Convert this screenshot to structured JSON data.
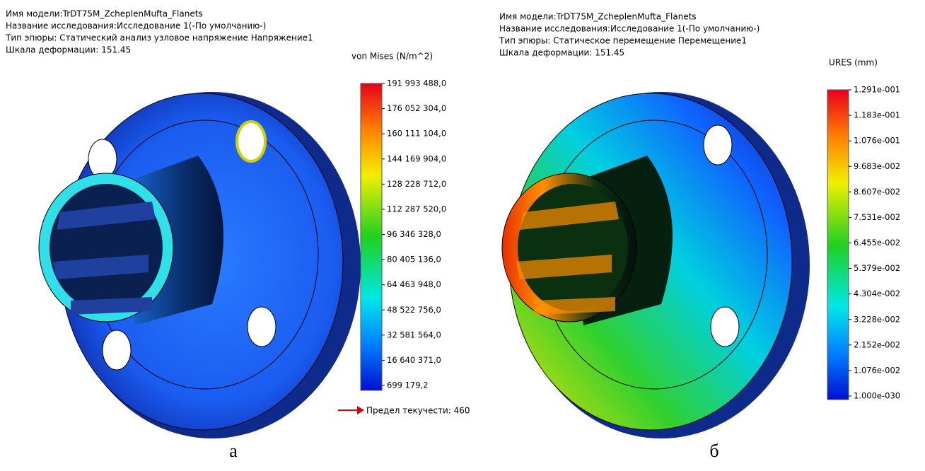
{
  "panels": [
    {
      "header": [
        "Имя модели:TrDT75M_ZcheplenMufta_Flanets",
        "Название исследования:Исследование 1(-По умолчанию-)",
        "Тип эпюры: Статический анализ узловое напряжение Напряжение1",
        "Шкала деформации: 151.45"
      ],
      "legend_title": "von Mises (N/m^2)",
      "legend_labels": [
        "191 993 488,0",
        "176 052 304,0",
        "160 111 104,0",
        "144 169 904,0",
        "128 228 712,0",
        "112 287 520,0",
        "96 346 328,0",
        "80 405 136,0",
        "64 463 948,0",
        "48 522 756,0",
        "32 581 564,0",
        "16 640 371,0",
        "699 179,2"
      ],
      "yield_note": "Предел текучести: 460",
      "caption": "а"
    },
    {
      "header": [
        "Имя модели:TrDT75M_ZcheplenMufta_Flanets",
        "Название исследования:Исследование 1(-По умолчанию-)",
        "Тип эпюры: Статическое перемещение Перемещение1",
        "Шкала деформации: 151.45"
      ],
      "legend_title": "URES (mm)",
      "legend_labels": [
        "1.291e-001",
        "1.183e-001",
        "1.076e-001",
        "9.683e-002",
        "8.607e-002",
        "7.531e-002",
        "6.455e-002",
        "5.379e-002",
        "4.304e-002",
        "3.228e-002",
        "2.152e-002",
        "1.076e-002",
        "1.000e-030"
      ],
      "caption": "б"
    }
  ]
}
